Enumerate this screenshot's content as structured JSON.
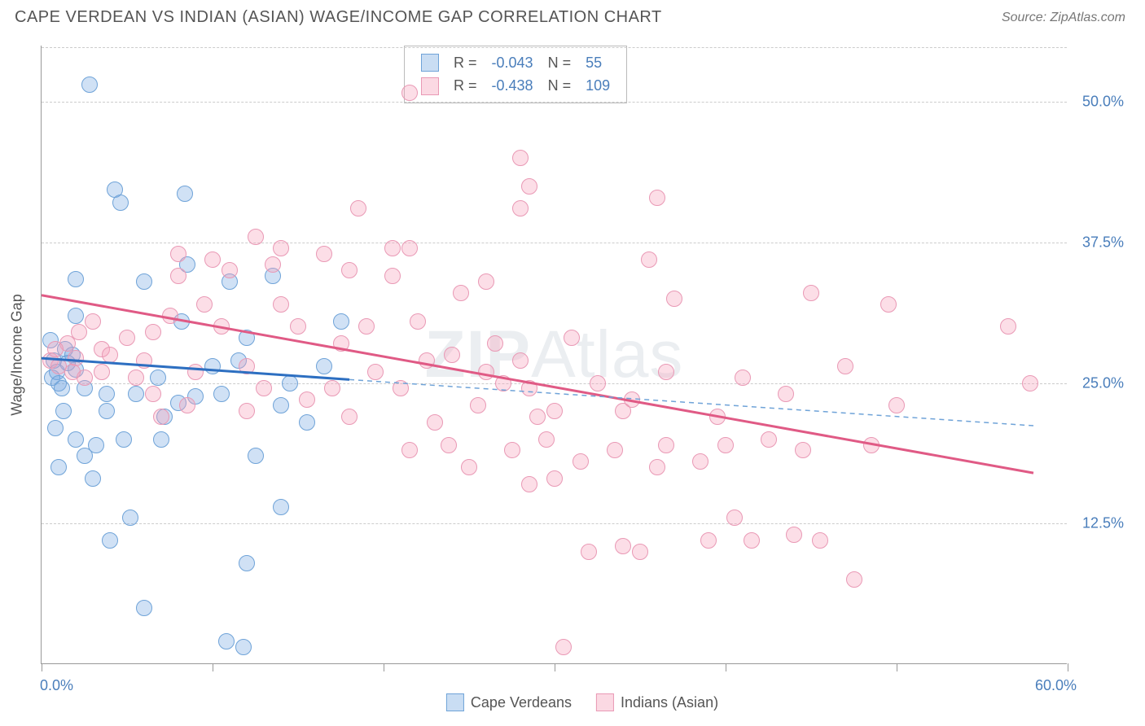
{
  "title": "CAPE VERDEAN VS INDIAN (ASIAN) WAGE/INCOME GAP CORRELATION CHART",
  "source": "Source: ZipAtlas.com",
  "watermark_bold": "ZIP",
  "watermark_rest": "Atlas",
  "y_axis_label": "Wage/Income Gap",
  "chart": {
    "type": "scatter",
    "background_color": "#ffffff",
    "grid_color": "#cccccc",
    "grid_dash": "4,4",
    "axis_line_color": "#999999",
    "x_range": [
      0,
      60
    ],
    "y_range": [
      0,
      55
    ],
    "x_tick_positions": [
      0,
      10,
      20,
      30,
      40,
      50,
      60
    ],
    "x_tick_labels": {
      "0": "0.0%",
      "60": "60.0%"
    },
    "y_tick_positions": [
      12.5,
      25.0,
      37.5,
      50.0
    ],
    "y_tick_labels": [
      "12.5%",
      "25.0%",
      "37.5%",
      "50.0%"
    ],
    "point_radius": 10,
    "label_color": "#4a7ebb",
    "text_color": "#555555",
    "series": [
      {
        "name": "Cape Verdeans",
        "color_fill": "rgba(120,170,225,0.35)",
        "color_stroke": "#6fa3d8",
        "R": "-0.043",
        "N": "55",
        "trend": {
          "x1": 0,
          "y1": 27.2,
          "x2": 18,
          "y2": 25.3,
          "color": "#2d6fc1",
          "width": 3
        },
        "trend_ext": {
          "x1": 18,
          "y1": 25.3,
          "x2": 58,
          "y2": 21.2,
          "color": "#6fa3d8",
          "width": 1.5,
          "dash": "6,5"
        },
        "points": [
          [
            2.8,
            51.5
          ],
          [
            4.3,
            42.2
          ],
          [
            4.6,
            41.0
          ],
          [
            8.4,
            41.8
          ],
          [
            2.0,
            34.2
          ],
          [
            6.0,
            34.0
          ],
          [
            8.2,
            30.5
          ],
          [
            2.0,
            31.0
          ],
          [
            0.5,
            28.8
          ],
          [
            1.4,
            28.0
          ],
          [
            0.7,
            27.0
          ],
          [
            0.9,
            26.0
          ],
          [
            1.8,
            27.5
          ],
          [
            2.0,
            26.2
          ],
          [
            1.5,
            26.8
          ],
          [
            0.6,
            25.5
          ],
          [
            1.0,
            25.0
          ],
          [
            1.2,
            24.5
          ],
          [
            2.5,
            24.5
          ],
          [
            3.8,
            24.0
          ],
          [
            5.5,
            24.0
          ],
          [
            6.8,
            25.5
          ],
          [
            8.0,
            23.2
          ],
          [
            9.0,
            23.8
          ],
          [
            10.5,
            24.0
          ],
          [
            7.2,
            22.0
          ],
          [
            3.8,
            22.5
          ],
          [
            1.3,
            22.5
          ],
          [
            0.8,
            21.0
          ],
          [
            2.0,
            20.0
          ],
          [
            3.2,
            19.5
          ],
          [
            4.8,
            20.0
          ],
          [
            2.5,
            18.5
          ],
          [
            1.0,
            17.5
          ],
          [
            3.0,
            16.5
          ],
          [
            7.0,
            20.0
          ],
          [
            4.0,
            11.0
          ],
          [
            5.2,
            13.0
          ],
          [
            12.5,
            18.5
          ],
          [
            14.0,
            14.0
          ],
          [
            12.0,
            9.0
          ],
          [
            6.0,
            5.0
          ],
          [
            10.8,
            2.0
          ],
          [
            11.8,
            1.5
          ],
          [
            13.5,
            34.5
          ],
          [
            17.5,
            30.5
          ],
          [
            10.0,
            26.5
          ],
          [
            11.5,
            27.0
          ],
          [
            12.0,
            29.0
          ],
          [
            14.5,
            25.0
          ],
          [
            16.5,
            26.5
          ],
          [
            14.0,
            23.0
          ],
          [
            15.5,
            21.5
          ],
          [
            8.5,
            35.5
          ],
          [
            11.0,
            34.0
          ]
        ]
      },
      {
        "name": "Indians (Asian)",
        "color_fill": "rgba(245,160,185,0.35)",
        "color_stroke": "#e999b5",
        "R": "-0.438",
        "N": "109",
        "trend": {
          "x1": 0,
          "y1": 32.8,
          "x2": 58,
          "y2": 17.0,
          "color": "#e05a85",
          "width": 3
        },
        "points": [
          [
            21.5,
            50.8
          ],
          [
            28.0,
            45.0
          ],
          [
            18.5,
            40.5
          ],
          [
            12.5,
            38.0
          ],
          [
            14.0,
            37.0
          ],
          [
            10.0,
            36.0
          ],
          [
            8.0,
            36.5
          ],
          [
            8.0,
            34.5
          ],
          [
            11.0,
            35.0
          ],
          [
            13.5,
            35.5
          ],
          [
            16.5,
            36.5
          ],
          [
            18.0,
            35.0
          ],
          [
            20.5,
            34.5
          ],
          [
            21.5,
            37.0
          ],
          [
            24.5,
            33.0
          ],
          [
            26.0,
            34.0
          ],
          [
            14.0,
            32.0
          ],
          [
            9.5,
            32.0
          ],
          [
            7.5,
            31.0
          ],
          [
            3.0,
            30.5
          ],
          [
            5.0,
            29.0
          ],
          [
            3.5,
            28.0
          ],
          [
            6.0,
            27.0
          ],
          [
            0.5,
            27.0
          ],
          [
            1.5,
            28.5
          ],
          [
            2.0,
            27.2
          ],
          [
            1.0,
            26.5
          ],
          [
            2.5,
            25.5
          ],
          [
            5.5,
            25.5
          ],
          [
            9.0,
            26.0
          ],
          [
            12.0,
            26.5
          ],
          [
            6.5,
            24.0
          ],
          [
            8.5,
            23.0
          ],
          [
            7.0,
            22.0
          ],
          [
            12.0,
            22.5
          ],
          [
            17.5,
            28.5
          ],
          [
            15.0,
            30.0
          ],
          [
            19.0,
            30.0
          ],
          [
            22.0,
            30.5
          ],
          [
            20.5,
            37.0
          ],
          [
            24.0,
            27.5
          ],
          [
            26.0,
            26.0
          ],
          [
            28.5,
            24.5
          ],
          [
            21.0,
            24.5
          ],
          [
            23.0,
            21.5
          ],
          [
            25.5,
            23.0
          ],
          [
            18.0,
            22.0
          ],
          [
            17.0,
            24.5
          ],
          [
            21.5,
            19.0
          ],
          [
            25.0,
            17.5
          ],
          [
            27.5,
            19.0
          ],
          [
            28.5,
            42.5
          ],
          [
            35.5,
            36.0
          ],
          [
            31.0,
            29.0
          ],
          [
            32.5,
            25.0
          ],
          [
            30.0,
            22.5
          ],
          [
            34.0,
            22.5
          ],
          [
            33.5,
            19.0
          ],
          [
            36.0,
            17.5
          ],
          [
            38.5,
            18.0
          ],
          [
            28.5,
            16.0
          ],
          [
            30.0,
            16.5
          ],
          [
            30.5,
            1.5
          ],
          [
            34.0,
            10.5
          ],
          [
            35.0,
            10.0
          ],
          [
            39.0,
            11.0
          ],
          [
            45.5,
            11.0
          ],
          [
            40.0,
            19.5
          ],
          [
            42.5,
            20.0
          ],
          [
            43.5,
            24.0
          ],
          [
            41.0,
            25.5
          ],
          [
            47.0,
            26.5
          ],
          [
            49.5,
            32.0
          ],
          [
            45.0,
            33.0
          ],
          [
            56.5,
            30.0
          ],
          [
            48.5,
            19.5
          ],
          [
            36.5,
            26.0
          ],
          [
            37.0,
            32.5
          ],
          [
            32.0,
            10.0
          ],
          [
            47.5,
            7.5
          ],
          [
            40.5,
            13.0
          ],
          [
            44.0,
            11.5
          ],
          [
            50.0,
            23.0
          ],
          [
            36.0,
            41.5
          ],
          [
            29.0,
            22.0
          ],
          [
            4.0,
            27.5
          ],
          [
            36.5,
            19.5
          ],
          [
            31.5,
            18.0
          ],
          [
            26.5,
            28.5
          ],
          [
            28.0,
            27.0
          ],
          [
            39.5,
            22.0
          ],
          [
            2.2,
            29.5
          ],
          [
            3.5,
            26.0
          ],
          [
            0.8,
            28.0
          ],
          [
            1.8,
            26.0
          ],
          [
            57.8,
            25.0
          ],
          [
            27.0,
            25.0
          ],
          [
            19.5,
            26.0
          ],
          [
            22.5,
            27.0
          ],
          [
            13.0,
            24.5
          ],
          [
            15.5,
            23.5
          ],
          [
            28.0,
            40.5
          ],
          [
            10.5,
            30.0
          ],
          [
            6.5,
            29.5
          ],
          [
            34.5,
            23.5
          ],
          [
            41.5,
            11.0
          ],
          [
            44.5,
            19.0
          ],
          [
            29.5,
            20.0
          ],
          [
            23.8,
            19.5
          ]
        ]
      }
    ]
  },
  "legend_top": {
    "R_label": "R =",
    "N_label": "N ="
  }
}
